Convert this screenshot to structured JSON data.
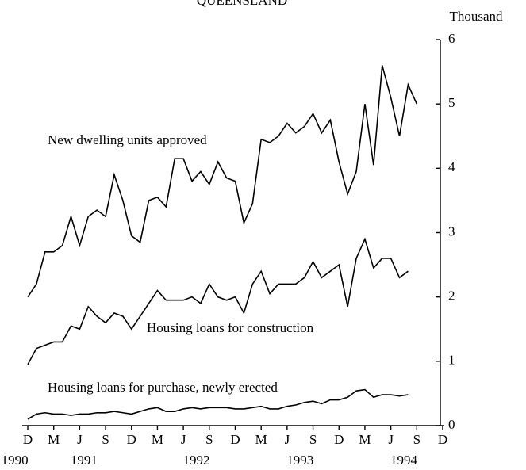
{
  "chart_data": {
    "type": "line",
    "title": "QUEENSLAND",
    "y_unit": "Thousand",
    "x": [
      0,
      1,
      2,
      3,
      4,
      5,
      6,
      7,
      8,
      9,
      10,
      11,
      12,
      13,
      14,
      15,
      16,
      17,
      18,
      19,
      20,
      21,
      22,
      23,
      24,
      25,
      26,
      27,
      28,
      29,
      30,
      31,
      32,
      33,
      34,
      35,
      36,
      37,
      38,
      39,
      40,
      41,
      42,
      43,
      44,
      45
    ],
    "xlim": [
      0,
      48
    ],
    "xticks": [
      {
        "value": 0,
        "label": "D"
      },
      {
        "value": 3,
        "label": "M"
      },
      {
        "value": 6,
        "label": "J"
      },
      {
        "value": 9,
        "label": "S"
      },
      {
        "value": 12,
        "label": "D"
      },
      {
        "value": 15,
        "label": "M"
      },
      {
        "value": 18,
        "label": "J"
      },
      {
        "value": 21,
        "label": "S"
      },
      {
        "value": 24,
        "label": "D"
      },
      {
        "value": 27,
        "label": "M"
      },
      {
        "value": 30,
        "label": "J"
      },
      {
        "value": 33,
        "label": "S"
      },
      {
        "value": 36,
        "label": "D"
      },
      {
        "value": 39,
        "label": "M"
      },
      {
        "value": 42,
        "label": "J"
      },
      {
        "value": 45,
        "label": "S"
      },
      {
        "value": 48,
        "label": "D"
      }
    ],
    "year_labels": [
      {
        "value": -1.5,
        "label": "1990"
      },
      {
        "value": 6.5,
        "label": "1991"
      },
      {
        "value": 19.5,
        "label": "1992"
      },
      {
        "value": 31.5,
        "label": "1993"
      },
      {
        "value": 43.5,
        "label": "1994"
      }
    ],
    "ylim": [
      0,
      6
    ],
    "yticks": [
      0,
      1,
      2,
      3,
      4,
      5,
      6
    ],
    "series": [
      {
        "name": "New dwelling units approved",
        "color": "#000000",
        "values": [
          2.0,
          2.2,
          2.7,
          2.7,
          2.8,
          3.25,
          2.8,
          3.25,
          3.35,
          3.25,
          3.9,
          3.5,
          2.95,
          2.85,
          3.5,
          3.55,
          3.4,
          4.15,
          4.15,
          3.8,
          3.95,
          3.75,
          4.1,
          3.85,
          3.8,
          3.15,
          3.45,
          4.45,
          4.4,
          4.5,
          4.7,
          4.55,
          4.65,
          4.85,
          4.55,
          4.75,
          4.1,
          3.6,
          3.95,
          5.0,
          4.05,
          5.6,
          5.1,
          4.5,
          5.3,
          5.0
        ]
      },
      {
        "name": "Housing loans for construction",
        "color": "#000000",
        "values": [
          0.95,
          1.2,
          1.25,
          1.3,
          1.3,
          1.55,
          1.5,
          1.85,
          1.7,
          1.6,
          1.75,
          1.7,
          1.5,
          1.7,
          1.9,
          2.1,
          1.95,
          1.95,
          1.95,
          2.0,
          1.9,
          2.2,
          2.0,
          1.95,
          2.0,
          1.75,
          2.2,
          2.4,
          2.05,
          2.2,
          2.2,
          2.2,
          2.3,
          2.55,
          2.3,
          2.4,
          2.5,
          1.85,
          2.6,
          2.9,
          2.45,
          2.6,
          2.6,
          2.3,
          2.4,
          null
        ]
      },
      {
        "name": "Housing loans for purchase, newly erected",
        "color": "#000000",
        "values": [
          0.1,
          0.18,
          0.2,
          0.18,
          0.18,
          0.16,
          0.18,
          0.18,
          0.2,
          0.2,
          0.22,
          0.2,
          0.18,
          0.22,
          0.26,
          0.28,
          0.22,
          0.22,
          0.26,
          0.28,
          0.26,
          0.28,
          0.28,
          0.28,
          0.26,
          0.26,
          0.28,
          0.3,
          0.26,
          0.26,
          0.3,
          0.32,
          0.36,
          0.38,
          0.34,
          0.4,
          0.4,
          0.44,
          0.54,
          0.56,
          0.44,
          0.48,
          0.48,
          0.46,
          0.48,
          null
        ]
      }
    ]
  }
}
